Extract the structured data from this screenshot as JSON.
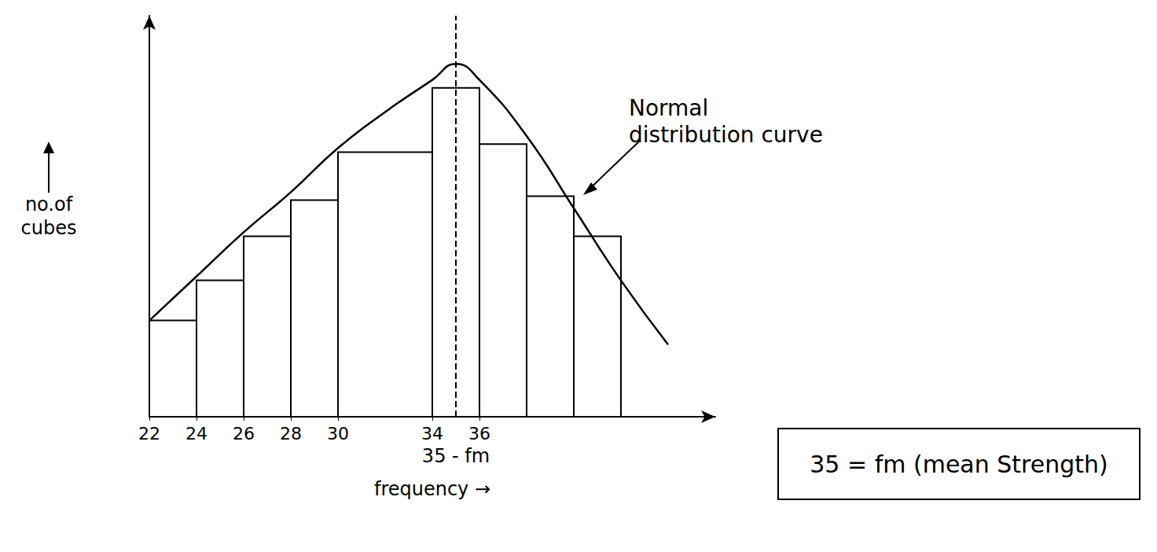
{
  "chart_data": {
    "type": "histogram",
    "x_label": "frequency →",
    "y_label": "no.of cubes",
    "bins": [
      22,
      24,
      26,
      28,
      30,
      34,
      36,
      38,
      40,
      42
    ],
    "values": [
      12,
      17,
      22.5,
      27,
      33,
      41,
      34,
      27.5,
      22.5
    ],
    "color": "#000000",
    "curve": {
      "label": "Normal distribution curve",
      "type": "line",
      "line_style": "solid",
      "x": [
        22,
        24,
        26,
        28,
        30,
        32,
        34,
        35,
        36,
        38,
        40,
        42,
        44
      ],
      "values": [
        12,
        17.5,
        23,
        28,
        33.5,
        38,
        42,
        44,
        42,
        35,
        26,
        17,
        9
      ]
    },
    "mean": {
      "value": 35,
      "label": "35 - fm",
      "line_style": "dashed"
    },
    "annotations": [
      "35 = fm (mean Strength)"
    ],
    "xlim": [
      22,
      46
    ],
    "xticks": [
      22,
      24,
      26,
      28,
      30,
      34,
      36
    ],
    "ylim": [
      0,
      50
    ],
    "tick_labels": "x",
    "grid": false
  }
}
